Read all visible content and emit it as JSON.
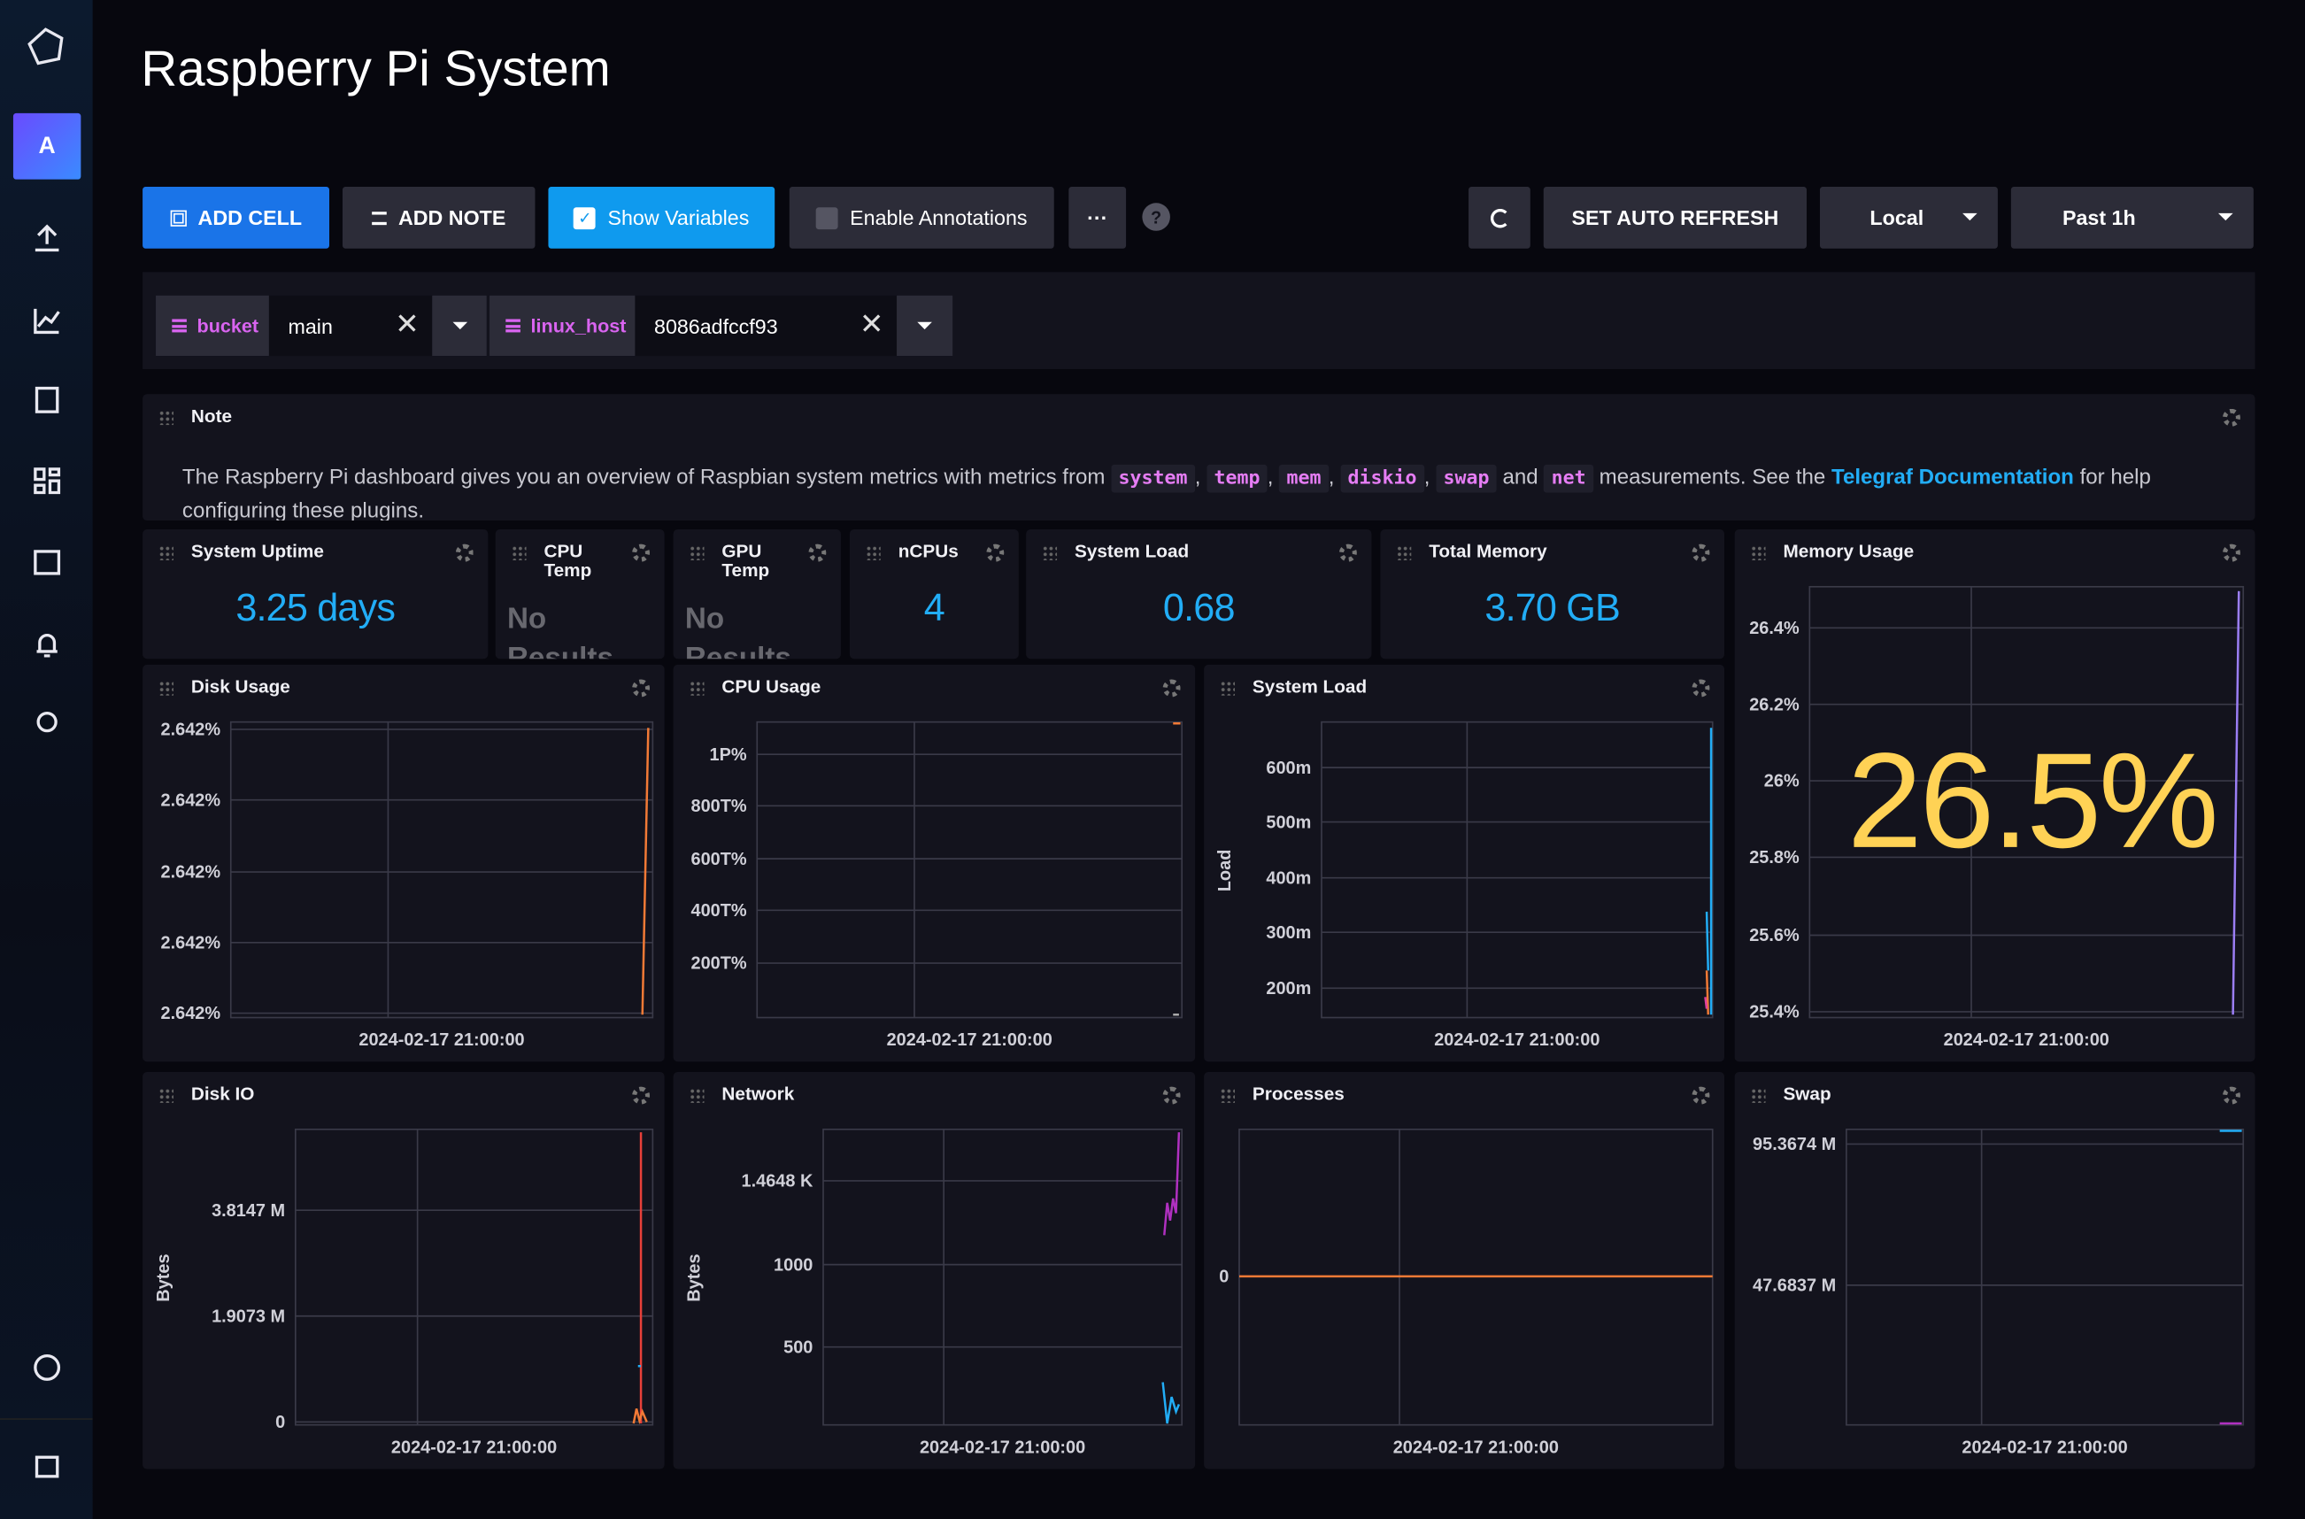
{
  "header": {
    "title": "Raspberry Pi System"
  },
  "sidebar": {
    "avatar": "A"
  },
  "toolbar": {
    "add_cell": "ADD CELL",
    "add_note": "ADD NOTE",
    "show_variables": "Show Variables",
    "enable_annotations": "Enable Annotations",
    "more": "···",
    "help": "?",
    "auto_refresh": "SET AUTO REFRESH",
    "timezone": "Local",
    "range": "Past 1h"
  },
  "variables": [
    {
      "name": "bucket",
      "value": "main"
    },
    {
      "name": "linux_host",
      "value": "8086adfccf93"
    }
  ],
  "note": {
    "title": "Note",
    "intro": "The Raspberry Pi dashboard gives you an overview of Raspbian system metrics with metrics from",
    "codes": [
      "system",
      "temp",
      "mem",
      "diskio",
      "swap",
      "net"
    ],
    "separator": ",",
    "and": "and",
    "middle": "measurements. See the",
    "link": "Telegraf Documentation",
    "outro": "for help configuring these plugins."
  },
  "stats": [
    {
      "title": "System Uptime",
      "value": "3.25 days"
    },
    {
      "title": "CPU Temp",
      "value": "No Results"
    },
    {
      "title": "GPU Temp",
      "value": "No Results"
    },
    {
      "title": "nCPUs",
      "value": "4"
    },
    {
      "title": "System Load",
      "value": "0.68"
    },
    {
      "title": "Total Memory",
      "value": "3.70 GB"
    }
  ],
  "graphs": [
    {
      "title": "Disk Usage",
      "yticks": [
        "2.642%",
        "2.642%",
        "2.642%",
        "2.642%",
        "2.642%"
      ],
      "xtick": "2024-02-17 21:00:00"
    },
    {
      "title": "CPU Usage",
      "yticks": [
        "1P%",
        "800T%",
        "600T%",
        "400T%",
        "200T%"
      ],
      "xtick": "2024-02-17 21:00:00"
    },
    {
      "title": "System Load",
      "ylabel": "Load",
      "yticks": [
        "600m",
        "500m",
        "400m",
        "300m",
        "200m"
      ],
      "xtick": "2024-02-17 21:00:00"
    },
    {
      "title": "Memory Usage",
      "yticks": [
        "26.4%",
        "26.2%",
        "26%",
        "25.8%",
        "25.6%",
        "25.4%"
      ],
      "xtick": "2024-02-17 21:00:00",
      "value": "26.5%"
    },
    {
      "title": "Disk IO",
      "ylabel": "Bytes",
      "yticks": [
        "3.8147 M",
        "1.9073 M",
        "0"
      ],
      "xtick": "2024-02-17 21:00:00"
    },
    {
      "title": "Network",
      "ylabel": "Bytes",
      "yticks": [
        "1.4648 K",
        "1000",
        "500"
      ],
      "xtick": "2024-02-17 21:00:00"
    },
    {
      "title": "Processes",
      "yticks": [
        "0"
      ],
      "xtick": "2024-02-17 21:00:00"
    },
    {
      "title": "Swap",
      "yticks": [
        "95.3674 M",
        "47.6837 M"
      ],
      "xtick": "2024-02-17 21:00:00"
    }
  ]
}
